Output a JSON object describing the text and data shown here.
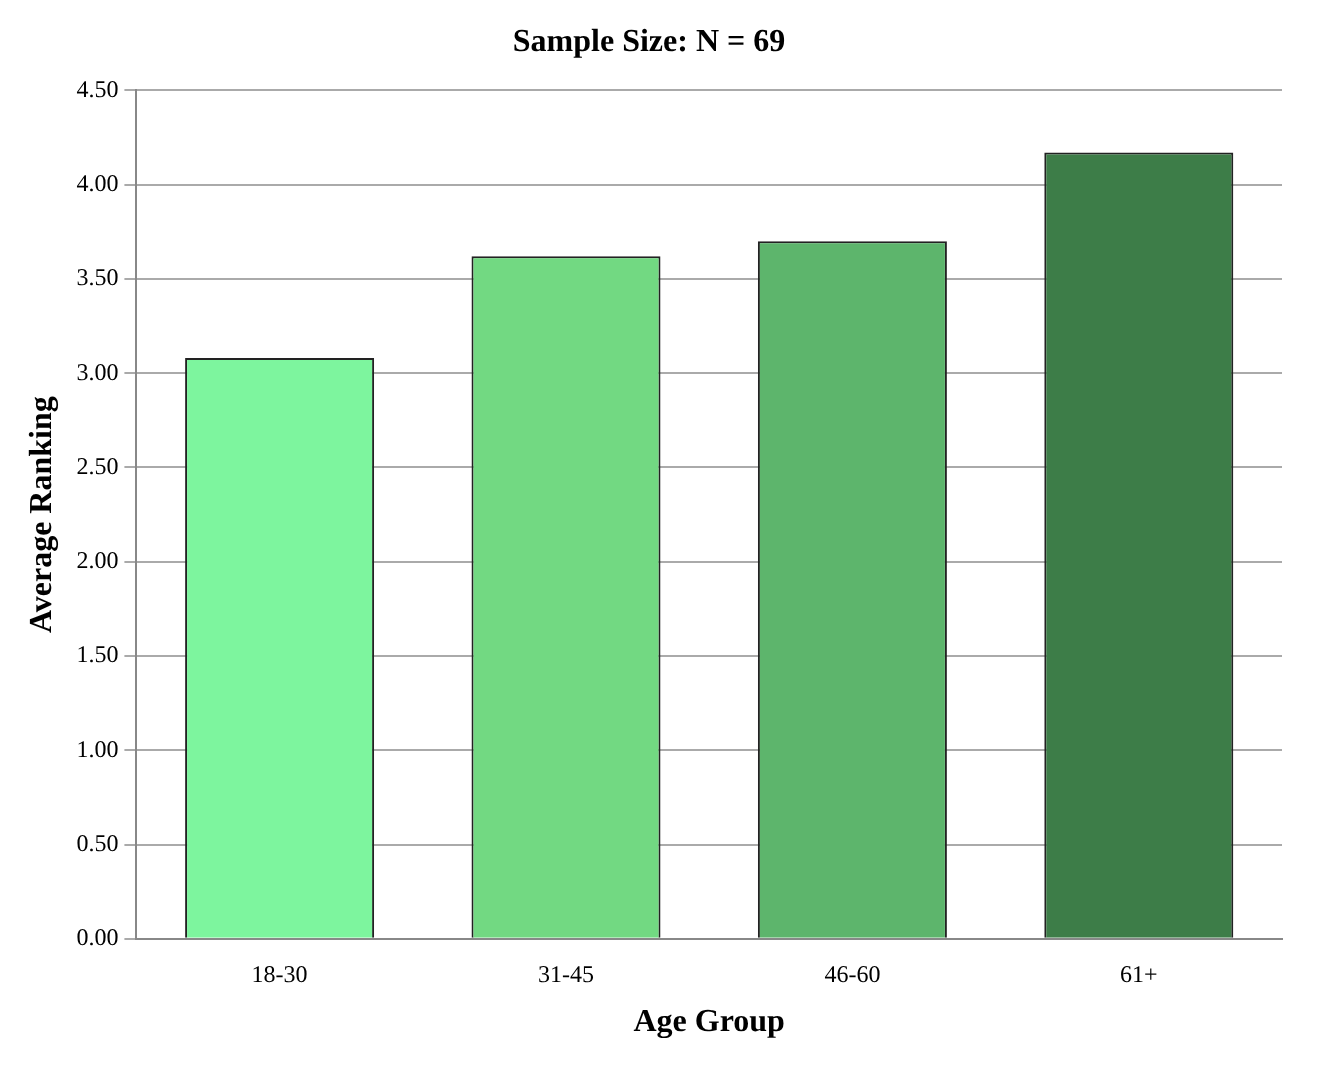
{
  "chart_data": {
    "type": "bar",
    "title": "Sample Size: N = 69",
    "xlabel": "Age Group",
    "ylabel": "Average Ranking",
    "categories": [
      "18-30",
      "31-45",
      "46-60",
      "61+"
    ],
    "values": [
      3.08,
      3.62,
      3.7,
      4.17
    ],
    "colors": [
      "#7df59e",
      "#72d982",
      "#5db56c",
      "#3d7d48"
    ],
    "ylim": [
      0,
      4.5
    ],
    "yticks": [
      {
        "value": 0,
        "label": "0.00"
      },
      {
        "value": 0.5,
        "label": "0.50"
      },
      {
        "value": 1,
        "label": "1.00"
      },
      {
        "value": 1.5,
        "label": "1.50"
      },
      {
        "value": 2,
        "label": "2.00"
      },
      {
        "value": 2.5,
        "label": "2.50"
      },
      {
        "value": 3,
        "label": "3.00"
      },
      {
        "value": 3.5,
        "label": "3.50"
      },
      {
        "value": 4,
        "label": "4.00"
      },
      {
        "value": 4.5,
        "label": "4.50"
      }
    ],
    "grid": "y",
    "legend": false
  }
}
